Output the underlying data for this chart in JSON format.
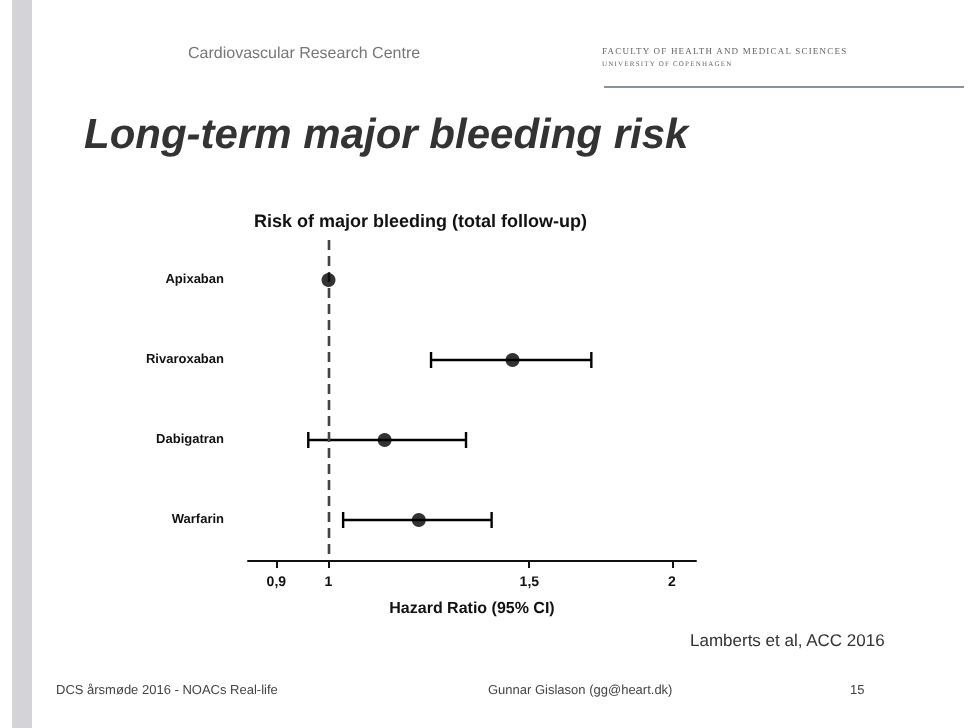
{
  "chart_data": {
    "type": "scatter",
    "orientation": "horizontal",
    "log": "x",
    "title": "Long-term major bleeding risk",
    "subtitle": "Risk of major bleeding (total follow-up)",
    "xlabel": "Hazard Ratio (95% CI)",
    "categories": [
      "Apixaban",
      "Rivaroxaban",
      "Dabigatran",
      "Warfarin"
    ],
    "values": [
      1,
      1.45,
      1.12,
      1.2
    ],
    "errors": [
      null,
      [
        1.23,
        1.7
      ],
      [
        0.96,
        1.32
      ],
      [
        1.03,
        1.39
      ]
    ],
    "color": "#000000",
    "marker": "circle",
    "xlim": [
      0.85,
      2.1
    ],
    "xticks": [
      {
        "value": 0.9,
        "label": "0,9"
      },
      1,
      {
        "value": 1.5,
        "label": "1,5"
      },
      2
    ],
    "ref_lines": [
      {
        "axis": "x",
        "value": 1,
        "line_style": "dashed",
        "color": "#444444"
      }
    ],
    "grid": false,
    "annotations": [
      "Cardiovascular Research Centre",
      "FACULTY OF HEALTH AND MEDICAL SCIENCES",
      "UNIVERSITY OF COPENHAGEN",
      "Lamberts et al, ACC 2016",
      "DCS årsmøde 2016 - NOACs Real-life",
      "Gunnar Gislason (gg@heart.dk)",
      "15"
    ]
  }
}
